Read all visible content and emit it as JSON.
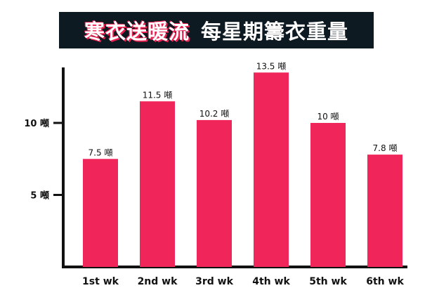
{
  "title": {
    "main": "寒衣送暖流",
    "sub": "每星期籌衣重量"
  },
  "chart_data": {
    "type": "bar",
    "title": "寒衣送暖流 每星期籌衣重量",
    "categories": [
      "1st wk",
      "2nd wk",
      "3rd wk",
      "4th wk",
      "5th wk",
      "6th wk"
    ],
    "values": [
      7.5,
      11.5,
      10.2,
      13.5,
      10,
      7.8
    ],
    "data_labels": [
      "7.5 噸",
      "11.5 噸",
      "10.2 噸",
      "13.5 噸",
      "10 噸",
      "7.8 噸"
    ],
    "yticks": [
      5,
      10
    ],
    "ytick_labels": [
      "5 噸",
      "10 噸"
    ],
    "ylim": [
      0,
      14
    ],
    "unit": "噸",
    "grid": false,
    "colors": {
      "bar": "#f0265a",
      "axis": "#111111",
      "banner": "#0e1a22",
      "title_accent": "#e8204f"
    }
  }
}
